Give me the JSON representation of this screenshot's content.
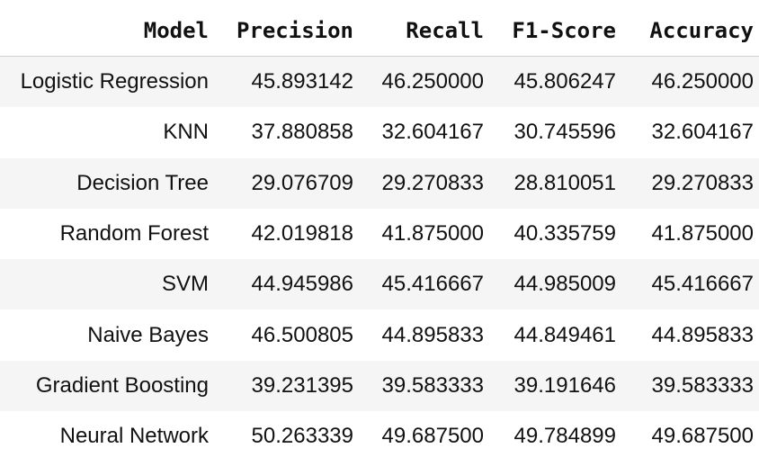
{
  "table": {
    "headers": [
      "Model",
      "Precision",
      "Recall",
      "F1-Score",
      "Accuracy"
    ],
    "rows": [
      [
        "Logistic Regression",
        "45.893142",
        "46.250000",
        "45.806247",
        "46.250000"
      ],
      [
        "KNN",
        "37.880858",
        "32.604167",
        "30.745596",
        "32.604167"
      ],
      [
        "Decision Tree",
        "29.076709",
        "29.270833",
        "28.810051",
        "29.270833"
      ],
      [
        "Random Forest",
        "42.019818",
        "41.875000",
        "40.335759",
        "41.875000"
      ],
      [
        "SVM",
        "44.945986",
        "45.416667",
        "44.985009",
        "45.416667"
      ],
      [
        "Naive Bayes",
        "46.500805",
        "44.895833",
        "44.849461",
        "44.895833"
      ],
      [
        "Gradient Boosting",
        "39.231395",
        "39.583333",
        "39.191646",
        "39.583333"
      ],
      [
        "Neural Network",
        "50.263339",
        "49.687500",
        "49.784899",
        "49.687500"
      ]
    ]
  },
  "colors": {
    "text": "#111111",
    "row_shade": "#f5f5f5",
    "header_rule": "#cfcfcf"
  }
}
